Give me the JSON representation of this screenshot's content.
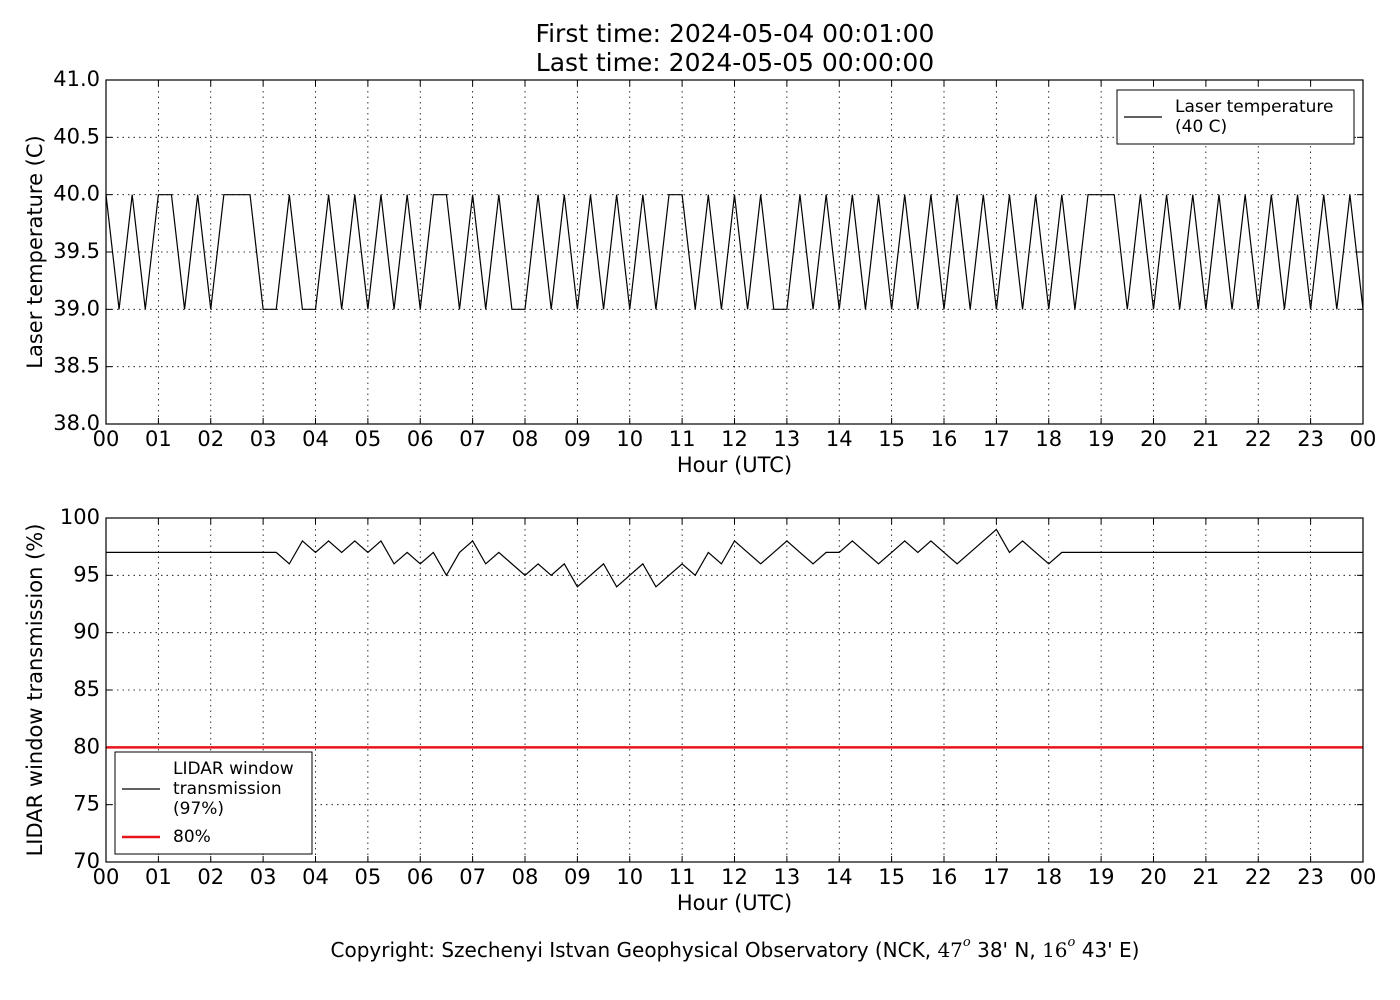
{
  "title": [
    "First time: 2024-05-04 00:01:00",
    "Last time: 2024-05-05 00:00:00"
  ],
  "footer": [
    "Copyright: Szechenyi Istvan Geophysical Observatory (NCK, ",
    "47",
    "o",
    "  38' N, ",
    "16",
    "o",
    "  43' E)"
  ],
  "chart_data": [
    {
      "type": "line",
      "xlabel": "Hour (UTC)",
      "ylabel": "Laser temperature (C)",
      "grid": true,
      "legend": "upper right",
      "xlim": [
        0,
        24
      ],
      "ylim": [
        38,
        41
      ],
      "xticks": [
        {
          "value": 0,
          "label": "00"
        },
        {
          "value": 1,
          "label": "01"
        },
        {
          "value": 2,
          "label": "02"
        },
        {
          "value": 3,
          "label": "03"
        },
        {
          "value": 4,
          "label": "04"
        },
        {
          "value": 5,
          "label": "05"
        },
        {
          "value": 6,
          "label": "06"
        },
        {
          "value": 7,
          "label": "07"
        },
        {
          "value": 8,
          "label": "08"
        },
        {
          "value": 9,
          "label": "09"
        },
        {
          "value": 10,
          "label": "10"
        },
        {
          "value": 11,
          "label": "11"
        },
        {
          "value": 12,
          "label": "12"
        },
        {
          "value": 13,
          "label": "13"
        },
        {
          "value": 14,
          "label": "14"
        },
        {
          "value": 15,
          "label": "15"
        },
        {
          "value": 16,
          "label": "16"
        },
        {
          "value": 17,
          "label": "17"
        },
        {
          "value": 18,
          "label": "18"
        },
        {
          "value": 19,
          "label": "19"
        },
        {
          "value": 20,
          "label": "20"
        },
        {
          "value": 21,
          "label": "21"
        },
        {
          "value": 22,
          "label": "22"
        },
        {
          "value": 23,
          "label": "23"
        },
        {
          "value": 24,
          "label": "00"
        }
      ],
      "yticks": [
        {
          "value": 38,
          "label": "38.0"
        },
        38.5,
        {
          "value": 39,
          "label": "39.0"
        },
        39.5,
        {
          "value": 40,
          "label": "40.0"
        },
        40.5,
        {
          "value": 41,
          "label": "41.0"
        }
      ],
      "series": [
        {
          "name": [
            "Laser temperature",
            "(40 C)"
          ],
          "color": "#000000",
          "width": 1.2,
          "x": [
            0,
            0.25,
            0.5,
            0.75,
            1,
            1.25,
            1.5,
            1.75,
            2,
            2.25,
            2.5,
            2.75,
            3,
            3.25,
            3.5,
            3.75,
            4,
            4.25,
            4.5,
            4.75,
            5,
            5.25,
            5.5,
            5.75,
            6,
            6.25,
            6.5,
            6.75,
            7,
            7.25,
            7.5,
            7.75,
            8,
            8.25,
            8.5,
            8.75,
            9,
            9.25,
            9.5,
            9.75,
            10,
            10.25,
            10.5,
            10.75,
            11,
            11.25,
            11.5,
            11.75,
            12,
            12.25,
            12.5,
            12.75,
            13,
            13.25,
            13.5,
            13.75,
            14,
            14.25,
            14.5,
            14.75,
            15,
            15.25,
            15.5,
            15.75,
            16,
            16.25,
            16.5,
            16.75,
            17,
            17.25,
            17.5,
            17.75,
            18,
            18.25,
            18.5,
            18.75,
            19,
            19.25,
            19.5,
            19.75,
            20,
            20.25,
            20.5,
            20.75,
            21,
            21.25,
            21.5,
            21.75,
            22,
            22.25,
            22.5,
            22.75,
            23,
            23.25,
            23.5,
            23.75,
            24
          ],
          "values": [
            40,
            39,
            40,
            39,
            40,
            40,
            39,
            40,
            39,
            40,
            40,
            40,
            39,
            39,
            40,
            39,
            39,
            40,
            39,
            40,
            39,
            40,
            39,
            40,
            39,
            40,
            40,
            39,
            40,
            39,
            40,
            39,
            39,
            40,
            39,
            40,
            39,
            40,
            39,
            40,
            39,
            40,
            39,
            40,
            40,
            39,
            40,
            39,
            40,
            39,
            40,
            39,
            39,
            40,
            39,
            40,
            39,
            40,
            39,
            40,
            39,
            40,
            39,
            40,
            39,
            40,
            39,
            40,
            39,
            40,
            39,
            40,
            39,
            40,
            39,
            40,
            40,
            40,
            39,
            40,
            39,
            40,
            39,
            40,
            39,
            40,
            39,
            40,
            39,
            40,
            39,
            40,
            39,
            40,
            39,
            40,
            39
          ]
        }
      ]
    },
    {
      "type": "line",
      "xlabel": "Hour (UTC)",
      "ylabel": "LIDAR window transmission (%)",
      "grid": true,
      "legend": "lower left",
      "xlim": [
        0,
        24
      ],
      "ylim": [
        70,
        100
      ],
      "xticks": [
        {
          "value": 0,
          "label": "00"
        },
        {
          "value": 1,
          "label": "01"
        },
        {
          "value": 2,
          "label": "02"
        },
        {
          "value": 3,
          "label": "03"
        },
        {
          "value": 4,
          "label": "04"
        },
        {
          "value": 5,
          "label": "05"
        },
        {
          "value": 6,
          "label": "06"
        },
        {
          "value": 7,
          "label": "07"
        },
        {
          "value": 8,
          "label": "08"
        },
        {
          "value": 9,
          "label": "09"
        },
        {
          "value": 10,
          "label": "10"
        },
        {
          "value": 11,
          "label": "11"
        },
        {
          "value": 12,
          "label": "12"
        },
        {
          "value": 13,
          "label": "13"
        },
        {
          "value": 14,
          "label": "14"
        },
        {
          "value": 15,
          "label": "15"
        },
        {
          "value": 16,
          "label": "16"
        },
        {
          "value": 17,
          "label": "17"
        },
        {
          "value": 18,
          "label": "18"
        },
        {
          "value": 19,
          "label": "19"
        },
        {
          "value": 20,
          "label": "20"
        },
        {
          "value": 21,
          "label": "21"
        },
        {
          "value": 22,
          "label": "22"
        },
        {
          "value": 23,
          "label": "23"
        },
        {
          "value": 24,
          "label": "00"
        }
      ],
      "yticks": [
        70,
        75,
        80,
        85,
        90,
        95,
        100
      ],
      "series": [
        {
          "name": [
            "LIDAR window",
            "transmission",
            "(97%)"
          ],
          "color": "#000000",
          "width": 1.2,
          "x": [
            0,
            0.25,
            0.5,
            0.75,
            1,
            1.25,
            1.5,
            1.75,
            2,
            2.25,
            2.5,
            2.75,
            3,
            3.25,
            3.5,
            3.75,
            4,
            4.25,
            4.5,
            4.75,
            5,
            5.25,
            5.5,
            5.75,
            6,
            6.25,
            6.5,
            6.75,
            7,
            7.25,
            7.5,
            7.75,
            8,
            8.25,
            8.5,
            8.75,
            9,
            9.25,
            9.5,
            9.75,
            10,
            10.25,
            10.5,
            10.75,
            11,
            11.25,
            11.5,
            11.75,
            12,
            12.25,
            12.5,
            12.75,
            13,
            13.25,
            13.5,
            13.75,
            14,
            14.25,
            14.5,
            14.75,
            15,
            15.25,
            15.5,
            15.75,
            16,
            16.25,
            16.5,
            16.75,
            17,
            17.25,
            17.5,
            17.75,
            18,
            18.25,
            18.5,
            18.75,
            19,
            19.25,
            19.5,
            19.75,
            20,
            20.25,
            20.5,
            20.75,
            21,
            21.25,
            21.5,
            21.75,
            22,
            22.25,
            22.5,
            22.75,
            23,
            23.25,
            23.5,
            23.75,
            24
          ],
          "values": [
            97,
            97,
            97,
            97,
            97,
            97,
            97,
            97,
            97,
            97,
            97,
            97,
            97,
            97,
            96,
            98,
            97,
            98,
            97,
            98,
            97,
            98,
            96,
            97,
            96,
            97,
            95,
            97,
            98,
            96,
            97,
            96,
            95,
            96,
            95,
            96,
            94,
            95,
            96,
            94,
            95,
            96,
            94,
            95,
            96,
            95,
            97,
            96,
            98,
            97,
            96,
            97,
            98,
            97,
            96,
            97,
            97,
            98,
            97,
            96,
            97,
            98,
            97,
            98,
            97,
            96,
            97,
            98,
            99,
            97,
            98,
            97,
            96,
            97,
            97,
            97,
            97,
            97,
            97,
            97,
            97,
            97,
            97,
            97,
            97,
            97,
            97,
            97,
            97,
            97,
            97,
            97,
            97,
            97,
            97,
            97,
            97
          ]
        },
        {
          "name": [
            "80%"
          ],
          "color": "#e8141b",
          "width": 2.5,
          "x": [
            0,
            24
          ],
          "values": [
            80,
            80
          ]
        }
      ]
    }
  ]
}
